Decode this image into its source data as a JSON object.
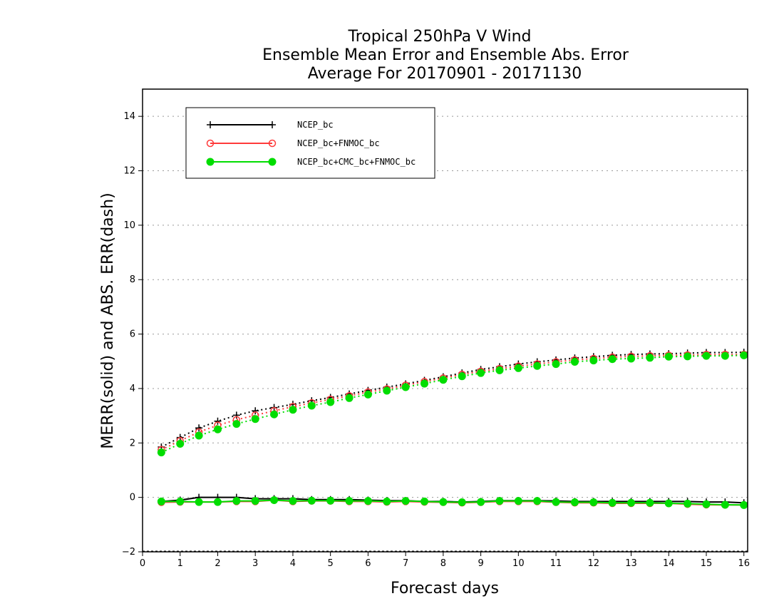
{
  "chart_data": {
    "type": "line",
    "title_lines": [
      "Tropical 250hPa V Wind",
      "Ensemble Mean Error and Ensemble Abs. Error",
      "Average For 20170901 - 20171130"
    ],
    "xlabel": "Forecast days",
    "ylabel": "MERR(solid) and ABS. ERR(dash)",
    "xlim": [
      0,
      16.1
    ],
    "ylim": [
      -2,
      15
    ],
    "x_ticks": [
      0,
      1,
      2,
      3,
      4,
      5,
      6,
      7,
      8,
      9,
      10,
      11,
      12,
      13,
      14,
      15,
      16
    ],
    "y_ticks": [
      -2,
      0,
      2,
      4,
      6,
      8,
      10,
      12,
      14
    ],
    "y_tick_labels": [
      "−2",
      "0",
      "2",
      "4",
      "6",
      "8",
      "10",
      "12",
      "14"
    ],
    "grid": "horizontal dotted",
    "legend_position": "top-left",
    "x": [
      0.5,
      1,
      1.5,
      2,
      2.5,
      3,
      3.5,
      4,
      4.5,
      5,
      5.5,
      6,
      6.5,
      7,
      7.5,
      8,
      8.5,
      9,
      9.5,
      10,
      10.5,
      11,
      11.5,
      12,
      12.5,
      13,
      13.5,
      14,
      14.5,
      15,
      15.5,
      16
    ],
    "series": [
      {
        "name": "NCEP_bc",
        "color": "#000000",
        "marker": "plus",
        "mean_error": [
          -0.15,
          -0.1,
          0.0,
          0.0,
          0.0,
          -0.05,
          -0.05,
          -0.05,
          -0.08,
          -0.08,
          -0.08,
          -0.1,
          -0.12,
          -0.12,
          -0.15,
          -0.15,
          -0.17,
          -0.15,
          -0.12,
          -0.12,
          -0.12,
          -0.13,
          -0.15,
          -0.15,
          -0.15,
          -0.15,
          -0.15,
          -0.15,
          -0.15,
          -0.17,
          -0.17,
          -0.2
        ],
        "abs_error": [
          1.85,
          2.2,
          2.55,
          2.8,
          3.02,
          3.18,
          3.3,
          3.42,
          3.55,
          3.67,
          3.8,
          3.93,
          4.05,
          4.17,
          4.3,
          4.43,
          4.57,
          4.7,
          4.8,
          4.9,
          4.98,
          5.05,
          5.12,
          5.17,
          5.22,
          5.25,
          5.27,
          5.28,
          5.3,
          5.32,
          5.32,
          5.33
        ]
      },
      {
        "name": "NCEP_bc+FNMOC_bc",
        "color": "#ff3b3b",
        "marker": "open-circle",
        "mean_error": [
          -0.18,
          -0.17,
          -0.17,
          -0.17,
          -0.15,
          -0.15,
          -0.1,
          -0.15,
          -0.13,
          -0.13,
          -0.15,
          -0.15,
          -0.17,
          -0.15,
          -0.17,
          -0.18,
          -0.2,
          -0.18,
          -0.15,
          -0.15,
          -0.15,
          -0.18,
          -0.2,
          -0.2,
          -0.22,
          -0.22,
          -0.22,
          -0.22,
          -0.25,
          -0.27,
          -0.28,
          -0.28
        ],
        "abs_error": [
          1.75,
          2.08,
          2.4,
          2.65,
          2.85,
          3.02,
          3.18,
          3.33,
          3.47,
          3.6,
          3.73,
          3.87,
          3.98,
          4.12,
          4.25,
          4.38,
          4.52,
          4.63,
          4.73,
          4.82,
          4.9,
          4.98,
          5.05,
          5.1,
          5.15,
          5.18,
          5.2,
          5.22,
          5.23,
          5.25,
          5.25,
          5.25
        ]
      },
      {
        "name": "NCEP_bc+CMC_bc+FNMOC_bc",
        "color": "#00dd00",
        "marker": "filled-circle",
        "mean_error": [
          -0.15,
          -0.15,
          -0.17,
          -0.17,
          -0.13,
          -0.13,
          -0.1,
          -0.13,
          -0.12,
          -0.12,
          -0.13,
          -0.13,
          -0.15,
          -0.13,
          -0.15,
          -0.17,
          -0.18,
          -0.17,
          -0.13,
          -0.13,
          -0.13,
          -0.17,
          -0.18,
          -0.18,
          -0.2,
          -0.2,
          -0.2,
          -0.22,
          -0.23,
          -0.25,
          -0.27,
          -0.28
        ],
        "abs_error": [
          1.65,
          1.97,
          2.27,
          2.5,
          2.7,
          2.88,
          3.05,
          3.22,
          3.37,
          3.5,
          3.65,
          3.78,
          3.92,
          4.05,
          4.18,
          4.32,
          4.45,
          4.57,
          4.67,
          4.75,
          4.83,
          4.9,
          4.98,
          5.03,
          5.08,
          5.1,
          5.13,
          5.17,
          5.18,
          5.2,
          5.2,
          5.22
        ]
      }
    ]
  }
}
